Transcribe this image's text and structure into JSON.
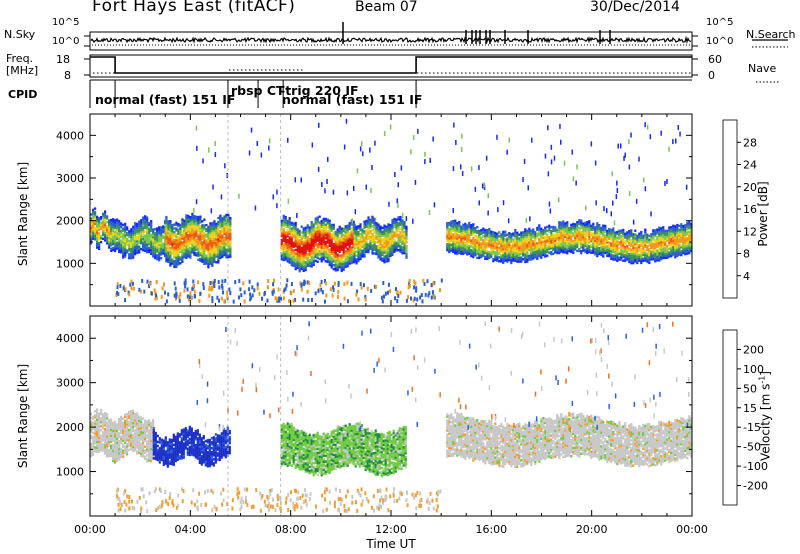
{
  "header": {
    "station": "Fort Hays East (fitACF)",
    "beam": "Beam 07",
    "date": "30/Dec/2014"
  },
  "panels": {
    "nsky_label": "N.Sky",
    "nsky_ticks": [
      "10^5",
      "10^0"
    ],
    "nsearch_label": "N.Search",
    "nsearch_ticks": [
      "10^5",
      "10^0"
    ],
    "freq_label": "Freq.",
    "freq_unit": "[MHz]",
    "freq_ticks": [
      "18",
      "8"
    ],
    "nave_label": "Nave",
    "nave_ticks": [
      "60",
      "0"
    ],
    "cpid_label": "CPID"
  },
  "cpid_segments": [
    {
      "label": "normal (fast) 151 IF",
      "start": 1.0,
      "end": 5.5
    },
    {
      "label": "rbsp CT",
      "start": 5.5,
      "end": 6.7
    },
    {
      "label": "-trig 220 IF",
      "start": 6.7,
      "end": 7.7
    },
    {
      "label": "normal (fast) 151 IF",
      "start": 7.7,
      "end": 13.0
    }
  ],
  "chart_data": [
    {
      "type": "heatmap",
      "name": "power-panel",
      "ylabel": "Slant Range [km]",
      "xlim": [
        0,
        24
      ],
      "ylim": [
        0,
        4500
      ],
      "yticks": [
        "1000",
        "2000",
        "3000",
        "4000"
      ],
      "colorbar": {
        "label": "Power [dB]",
        "ticks": [
          "4",
          "8",
          "12",
          "16",
          "20",
          "24",
          "28"
        ],
        "colors": [
          "#1428ff",
          "#2a5fd0",
          "#3f8f5a",
          "#78c850",
          "#f0d020",
          "#f09a18",
          "#ee5a12",
          "#e01010"
        ]
      },
      "echo_regions": [
        {
          "start": 0.0,
          "end": 0.8,
          "range_min": 1400,
          "range_max": 2200,
          "level": 18
        },
        {
          "start": 0.8,
          "end": 3.0,
          "range_min": 1150,
          "range_max": 2000,
          "level": 12
        },
        {
          "start": 3.0,
          "end": 5.6,
          "range_min": 1000,
          "range_max": 2100,
          "level": 20
        },
        {
          "start": 7.6,
          "end": 10.5,
          "range_min": 900,
          "range_max": 2000,
          "level": 26
        },
        {
          "start": 10.5,
          "end": 12.6,
          "range_min": 1100,
          "range_max": 2000,
          "level": 16
        },
        {
          "start": 14.2,
          "end": 24.0,
          "range_min": 1100,
          "range_max": 1900,
          "level": 18
        }
      ]
    },
    {
      "type": "heatmap",
      "name": "velocity-panel",
      "ylabel": "Slant Range [km]",
      "xlabel": "Time UT",
      "xlim": [
        0,
        24
      ],
      "ylim": [
        0,
        4500
      ],
      "yticks": [
        "1000",
        "2000",
        "3000",
        "4000"
      ],
      "xticks": [
        "00:00",
        "04:00",
        "08:00",
        "12:00",
        "16:00",
        "20:00",
        "00:00"
      ],
      "colorbar": {
        "label": "Velocity [m s",
        "label_exp": "-1",
        "label_end": "]",
        "ticks": [
          "200",
          "100",
          "50",
          "15",
          "-15",
          "-50",
          "-100",
          "-200"
        ],
        "colors": [
          "#1c30c8",
          "#2860e0",
          "#208a40",
          "#70cc40",
          "#c8c8c8",
          "#f0a030",
          "#f07020",
          "#e83010",
          "#e00000"
        ]
      },
      "echo_regions": [
        {
          "start": 0.0,
          "end": 2.5,
          "range_min": 1300,
          "range_max": 2300,
          "velocity": 0
        },
        {
          "start": 2.5,
          "end": 5.6,
          "range_min": 1200,
          "range_max": 1900,
          "velocity": 200
        },
        {
          "start": 7.6,
          "end": 12.6,
          "range_min": 1000,
          "range_max": 2000,
          "velocity": 30
        },
        {
          "start": 14.2,
          "end": 24.0,
          "range_min": 1200,
          "range_max": 2200,
          "velocity": 0
        }
      ]
    }
  ]
}
